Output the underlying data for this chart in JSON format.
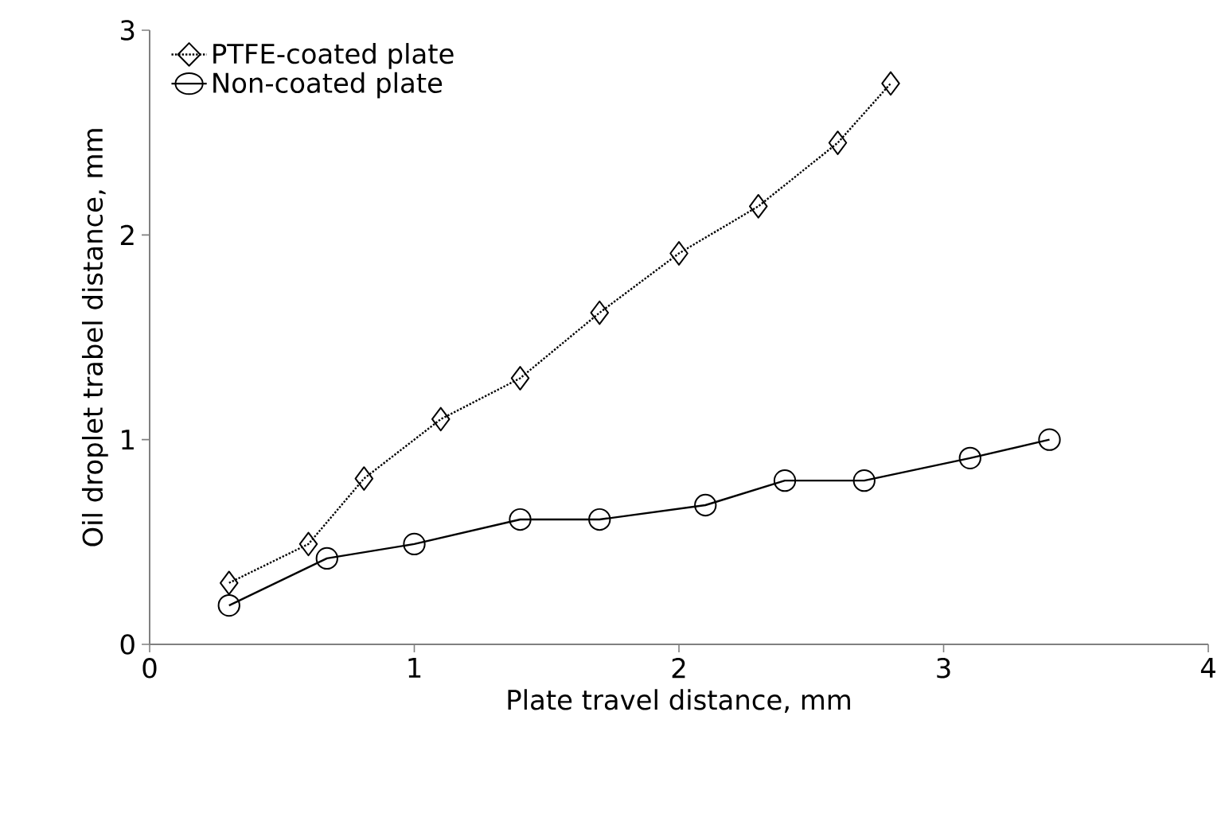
{
  "chart_data": {
    "type": "line",
    "xlabel": "Plate travel distance, mm",
    "ylabel": "Oil droplet trabel distance, mm",
    "xlim": [
      0,
      4
    ],
    "ylim": [
      0,
      3
    ],
    "xticks": [
      0,
      1,
      2,
      3,
      4
    ],
    "yticks": [
      0,
      1,
      2,
      3
    ],
    "legend": "top left",
    "grid": false,
    "series": [
      {
        "name": "PTFE-coated plate",
        "color": "#000000",
        "marker": "diamond",
        "line_style": "dotted",
        "x": [
          0.3,
          0.6,
          0.81,
          1.1,
          1.4,
          1.7,
          2.0,
          2.3,
          2.6,
          2.8
        ],
        "values": [
          0.3,
          0.49,
          0.81,
          1.1,
          1.3,
          1.62,
          1.91,
          2.14,
          2.45,
          2.74
        ]
      },
      {
        "name": "Non-coated plate",
        "color": "#000000",
        "marker": "circle",
        "line_style": "solid",
        "x": [
          0.3,
          0.67,
          1.0,
          1.4,
          1.7,
          2.1,
          2.4,
          2.7,
          3.1,
          3.4
        ],
        "values": [
          0.19,
          0.42,
          0.49,
          0.61,
          0.61,
          0.68,
          0.8,
          0.8,
          0.91,
          1.0
        ]
      }
    ]
  }
}
